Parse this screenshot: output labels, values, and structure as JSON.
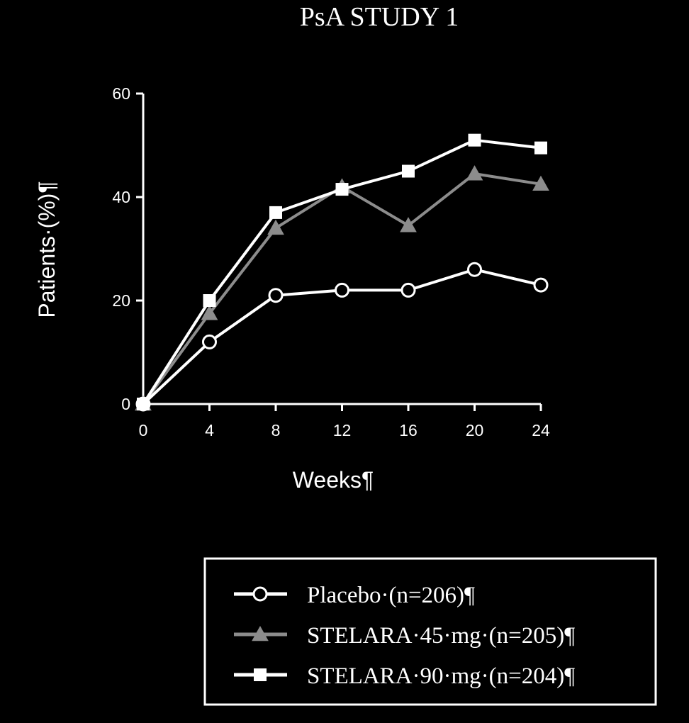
{
  "chart_data": {
    "type": "line",
    "title": "PsA STUDY 1",
    "xlabel": "Weeks¶",
    "ylabel": "Patients·(%)¶",
    "x": [
      0,
      4,
      8,
      12,
      16,
      20,
      24
    ],
    "x_ticks": [
      "0",
      "4",
      "8",
      "12",
      "16",
      "20",
      "24"
    ],
    "y_ticks": [
      "0",
      "20",
      "40",
      "60"
    ],
    "xlim": [
      0,
      24
    ],
    "ylim": [
      0,
      60
    ],
    "grid": false,
    "legend_position": "bottom-right",
    "series": [
      {
        "name": "Placebo·(n=206)¶",
        "marker": "circle-open",
        "color": "#ffffff",
        "values": [
          0,
          12,
          21,
          22,
          22,
          26,
          23
        ]
      },
      {
        "name": "STELARA·45·mg·(n=205)¶",
        "marker": "triangle",
        "color": "#8c8c8c",
        "values": [
          0,
          17.5,
          34,
          42,
          34.5,
          44.5,
          42.5
        ]
      },
      {
        "name": "STELARA·90·mg·(n=204)¶",
        "marker": "square",
        "color": "#ffffff",
        "values": [
          0,
          20,
          37,
          41.5,
          45,
          51,
          49.5
        ]
      }
    ]
  },
  "colors": {
    "background": "#000000",
    "foreground": "#ffffff",
    "muted_series": "#8c8c8c"
  }
}
